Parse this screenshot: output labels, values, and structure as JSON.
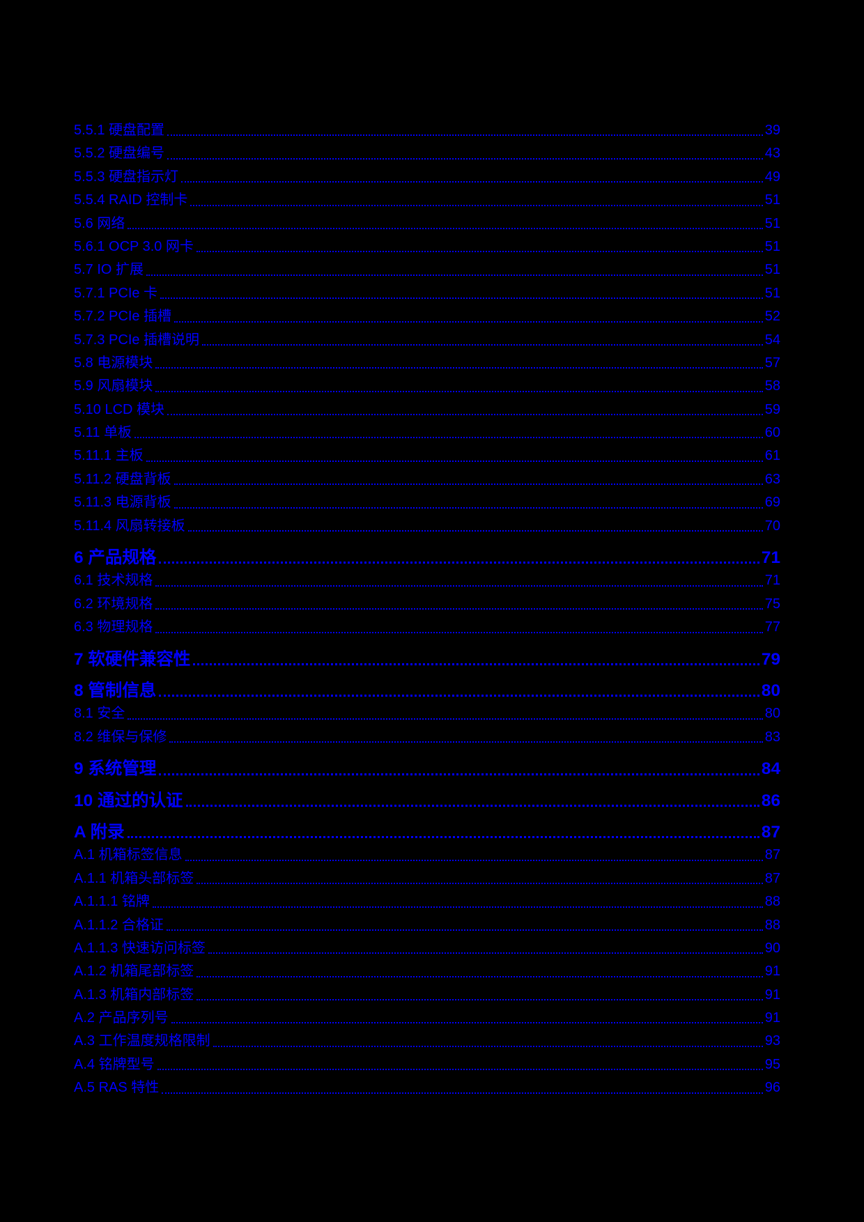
{
  "page": {
    "background": "#000000",
    "link_color": "#0000ff"
  },
  "toc": {
    "entries": [
      {
        "label": "5.5.1 硬盘配置",
        "page": "39",
        "level": "sub"
      },
      {
        "label": "5.5.2 硬盘编号",
        "page": "43",
        "level": "sub"
      },
      {
        "label": "5.5.3 硬盘指示灯",
        "page": "49",
        "level": "sub"
      },
      {
        "label": "5.5.4 RAID 控制卡",
        "page": "51",
        "level": "sub"
      },
      {
        "label": "5.6 网络",
        "page": "51",
        "level": "sub"
      },
      {
        "label": "5.6.1 OCP 3.0 网卡",
        "page": "51",
        "level": "sub"
      },
      {
        "label": "5.7 IO 扩展",
        "page": "51",
        "level": "sub"
      },
      {
        "label": "5.7.1 PCIe 卡",
        "page": "51",
        "level": "sub"
      },
      {
        "label": "5.7.2 PCIe 插槽",
        "page": "52",
        "level": "sub"
      },
      {
        "label": "5.7.3 PCIe 插槽说明",
        "page": "54",
        "level": "sub"
      },
      {
        "label": "5.8 电源模块",
        "page": "57",
        "level": "sub"
      },
      {
        "label": "5.9 风扇模块",
        "page": "58",
        "level": "sub"
      },
      {
        "label": "5.10 LCD 模块",
        "page": "59",
        "level": "sub"
      },
      {
        "label": "5.11 单板",
        "page": "60",
        "level": "sub"
      },
      {
        "label": "5.11.1 主板",
        "page": "61",
        "level": "sub"
      },
      {
        "label": "5.11.2 硬盘背板",
        "page": "63",
        "level": "sub"
      },
      {
        "label": "5.11.3 电源背板",
        "page": "69",
        "level": "sub"
      },
      {
        "label": "5.11.4 风扇转接板",
        "page": "70",
        "level": "sub"
      },
      {
        "label": "6 产品规格",
        "page": "71",
        "level": "chapter"
      },
      {
        "label": "6.1 技术规格",
        "page": "71",
        "level": "sub"
      },
      {
        "label": "6.2 环境规格",
        "page": "75",
        "level": "sub"
      },
      {
        "label": "6.3 物理规格",
        "page": "77",
        "level": "sub"
      },
      {
        "label": "7 软硬件兼容性",
        "page": "79",
        "level": "chapter"
      },
      {
        "label": "8 管制信息",
        "page": "80",
        "level": "chapter"
      },
      {
        "label": "8.1 安全",
        "page": "80",
        "level": "sub"
      },
      {
        "label": "8.2 维保与保修",
        "page": "83",
        "level": "sub"
      },
      {
        "label": "9 系统管理",
        "page": "84",
        "level": "chapter"
      },
      {
        "label": "10 通过的认证",
        "page": "86",
        "level": "chapter"
      },
      {
        "label": "A 附录",
        "page": "87",
        "level": "chapter"
      },
      {
        "label": "A.1 机箱标签信息",
        "page": "87",
        "level": "sub"
      },
      {
        "label": "A.1.1 机箱头部标签",
        "page": "87",
        "level": "sub"
      },
      {
        "label": "A.1.1.1 铭牌",
        "page": "88",
        "level": "sub"
      },
      {
        "label": "A.1.1.2 合格证",
        "page": "88",
        "level": "sub"
      },
      {
        "label": "A.1.1.3 快速访问标签",
        "page": "90",
        "level": "sub"
      },
      {
        "label": "A.1.2 机箱尾部标签",
        "page": "91",
        "level": "sub"
      },
      {
        "label": "A.1.3 机箱内部标签",
        "page": "91",
        "level": "sub"
      },
      {
        "label": "A.2 产品序列号",
        "page": "91",
        "level": "sub"
      },
      {
        "label": "A.3 工作温度规格限制",
        "page": "93",
        "level": "sub"
      },
      {
        "label": "A.4 铭牌型号",
        "page": "95",
        "level": "sub"
      },
      {
        "label": "A.5 RAS 特性",
        "page": "96",
        "level": "sub"
      }
    ]
  }
}
